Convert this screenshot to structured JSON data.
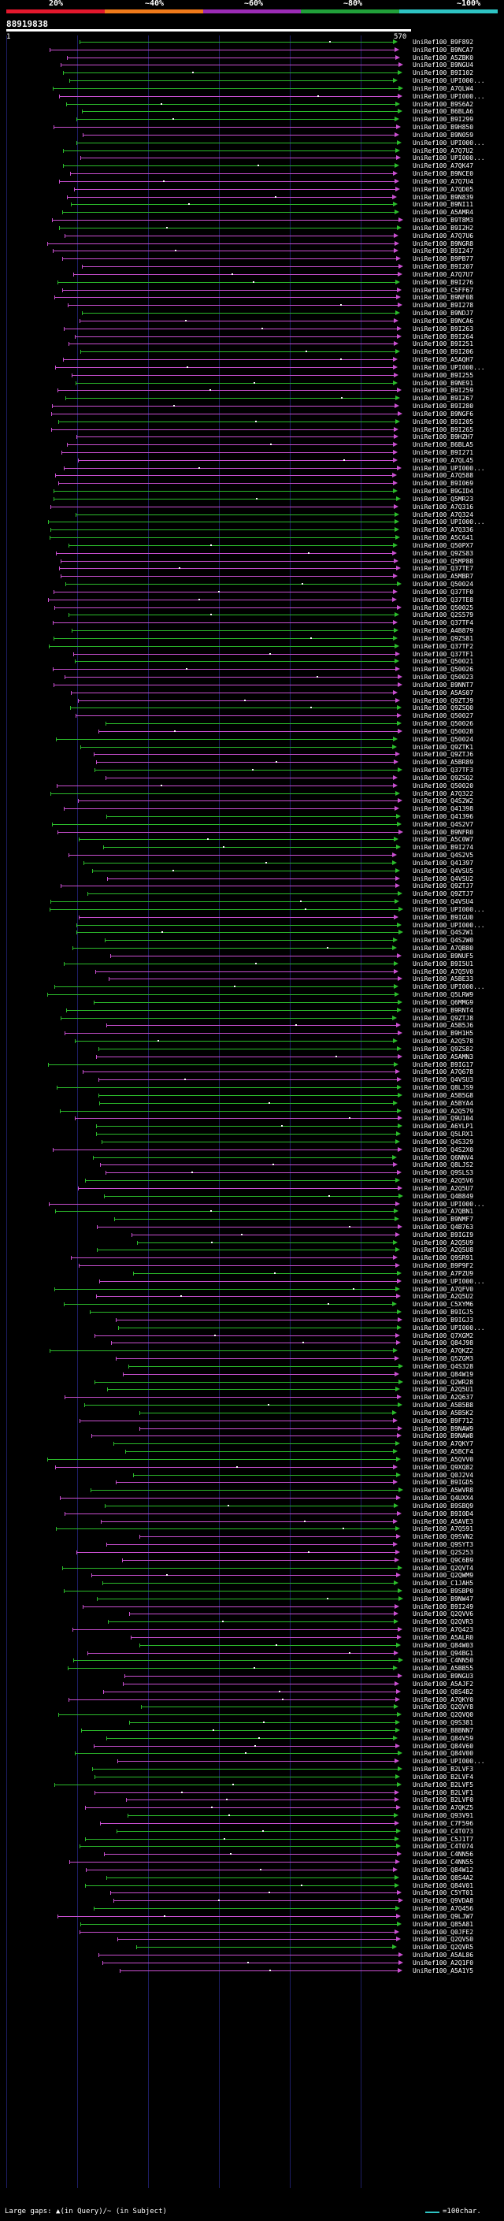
{
  "legend": {
    "labels": [
      "20%",
      "~40%",
      "~60%",
      "~80%",
      "~100%"
    ],
    "colors": [
      "#e3182d",
      "#f07a1a",
      "#9b2bb5",
      "#21a03a",
      "#2ec4c4"
    ]
  },
  "title": "88919838",
  "ruler": {
    "start": "1",
    "end": "570"
  },
  "footer": {
    "left": "Large gaps: ▲(in Query)/~ (in Subject)",
    "right": "=100char."
  },
  "colors": {
    "green": "#2bbb2b",
    "magenta": "#c94fd0",
    "background": "#000000",
    "gridline": "#1e1e66"
  },
  "hits": [
    "UniRef100_B9F892",
    "UniRef100_B9NCA7",
    "UniRef100_A5ZBK0",
    "UniRef100_B9NGU4",
    "UniRef100_B9I102",
    "UniRef100_UPI000...",
    "UniRef100_A7QLW4",
    "UniRef100_UPI000...",
    "UniRef100_B9S6A2",
    "UniRef100_B6BLA6",
    "UniRef100_B9I299",
    "UniRef100_B9H850",
    "UniRef100_B9N059",
    "UniRef100_UPI000...",
    "UniRef100_A7Q7U2",
    "UniRef100_UPI000...",
    "UniRef100_A7QK47",
    "UniRef100_B9NCE0",
    "UniRef100_A7Q7U4",
    "UniRef100_A7QD05",
    "UniRef100_B9N839",
    "UniRef100_B9NI11",
    "UniRef100_A5AMR4",
    "UniRef100_B9T8M3",
    "UniRef100_B9I2H2",
    "UniRef100_A7Q7U6",
    "UniRef100_B9NGR8",
    "UniRef100_B9I247",
    "UniRef100_B9PB77",
    "UniRef100_B9I207",
    "UniRef100_A7Q7U7",
    "UniRef100_B9I276",
    "UniRef100_C5FF67",
    "UniRef100_B9NF08",
    "UniRef100_B9I278",
    "UniRef100_B9NDJ7",
    "UniRef100_B9NCA6",
    "UniRef100_B9I263",
    "UniRef100_B9I264",
    "UniRef100_B9I251",
    "UniRef100_B9I206",
    "UniRef100_A5AQH7",
    "UniRef100_UPI000...",
    "UniRef100_B9I255",
    "UniRef100_B9NE91",
    "UniRef100_B9I259",
    "UniRef100_B9I267",
    "UniRef100_B9I280",
    "UniRef100_B9NGF6",
    "UniRef100_B9I205",
    "UniRef100_B9I265",
    "UniRef100_B9HZH7",
    "UniRef100_B6BLA5",
    "UniRef100_B9I271",
    "UniRef100_A7QL45",
    "UniRef100_UPI000...",
    "UniRef100_A7Q588",
    "UniRef100_B9I069",
    "UniRef100_B9GID4",
    "UniRef100_Q5MR23",
    "UniRef100_A7Q316",
    "UniRef100_A7Q324",
    "UniRef100_UPI000...",
    "UniRef100_A7Q336",
    "UniRef100_A5C641",
    "UniRef100_Q50PX7",
    "UniRef100_Q9ZS83",
    "UniRef100_Q5MP88",
    "UniRef100_Q37TE7",
    "UniRef100_A5MBR7",
    "UniRef100_Q50024",
    "UniRef100_Q37TF0",
    "UniRef100_Q37TE8",
    "UniRef100_Q50025",
    "UniRef100_Q2S579",
    "UniRef100_Q37TF4",
    "UniRef100_A4B879",
    "UniRef100_Q9ZS81",
    "UniRef100_Q37TF2",
    "UniRef100_Q37TF1",
    "UniRef100_Q50021",
    "UniRef100_Q50026",
    "UniRef100_Q50023",
    "UniRef100_B9NNT7",
    "UniRef100_A5AS07",
    "UniRef100_Q9ZTJ9",
    "UniRef100_Q9ZSQ0",
    "UniRef100_Q50027",
    "UniRef100_Q50026",
    "UniRef100_Q50028",
    "UniRef100_Q50024",
    "UniRef100_Q9ZTK1",
    "UniRef100_Q9ZTJ6",
    "UniRef100_A5BR89",
    "UniRef100_Q37TF3",
    "UniRef100_Q9ZSQ2",
    "UniRef100_Q50020",
    "UniRef100_A7Q322",
    "UniRef100_Q4S2W2",
    "UniRef100_Q41398",
    "UniRef100_Q41396",
    "UniRef100_Q4S2V7",
    "UniRef100_B9NFR0",
    "UniRef100_A5C0W7",
    "UniRef100_B9I274",
    "UniRef100_Q4S2V5",
    "UniRef100_Q41397",
    "UniRef100_Q4VSU5",
    "UniRef100_Q4VSU2",
    "UniRef100_Q9ZTJ7",
    "UniRef100_Q9ZTJ7",
    "UniRef100_Q4VSU4",
    "UniRef100_UPI000...",
    "UniRef100_B9IGU0",
    "UniRef100_UPI000...",
    "UniRef100_Q4S2W1",
    "UniRef100_Q4S2W0",
    "UniRef100_A7QB80",
    "UniRef100_B9NUF5",
    "UniRef100_B9I5U1",
    "UniRef100_A7Q5V0",
    "UniRef100_A5BE33",
    "UniRef100_UPI000...",
    "UniRef100_Q5LRW9",
    "UniRef100_Q6MMG9",
    "UniRef100_B9RNT4",
    "UniRef100_Q9ZTJ8",
    "UniRef100_A5B5J6",
    "UniRef100_B9H1H5",
    "UniRef100_A2Q578",
    "UniRef100_Q9ZS82",
    "UniRef100_A5AMN3",
    "UniRef100_B9IG17",
    "UniRef100_A7Q678",
    "UniRef100_Q4VSU3",
    "UniRef100_Q8LJS9",
    "UniRef100_A5B5G8",
    "UniRef100_A5BYA4",
    "UniRef100_A2Q579",
    "UniRef100_Q9U104",
    "UniRef100_A6YLP1",
    "UniRef100_Q5LRX1",
    "UniRef100_Q4S329",
    "UniRef100_Q4S2X0",
    "UniRef100_Q6NNV4",
    "UniRef100_Q8LJS2",
    "UniRef100_Q9SLS3",
    "UniRef100_A2Q5V6",
    "UniRef100_A2Q5U7",
    "UniRef100_Q4B849",
    "UniRef100_UPI000...",
    "UniRef100_A7QBN1",
    "UniRef100_B9NMF7",
    "UniRef100_Q4B763",
    "UniRef100_B9IGI9",
    "UniRef100_A2Q5U9",
    "UniRef100_A2Q5U8",
    "UniRef100_Q9SR91",
    "UniRef100_B9P9F2",
    "UniRef100_A7PZU9",
    "UniRef100_UPI000...",
    "UniRef100_A7QFV0",
    "UniRef100_A2Q5U2",
    "UniRef100_C5XYM6",
    "UniRef100_B9IGJ5",
    "UniRef100_B9IGJ3",
    "UniRef100_UPI000...",
    "UniRef100_Q7XGM2",
    "UniRef100_Q84J98",
    "UniRef100_A7QKZ2",
    "UniRef100_Q5ZGM3",
    "UniRef100_Q4S328",
    "UniRef100_Q84W19",
    "UniRef100_Q2WR28",
    "UniRef100_A2Q5U1",
    "UniRef100_A2Q637",
    "UniRef100_A5B5B8",
    "UniRef100_A5B5K2",
    "UniRef100_B9F712",
    "UniRef100_B9NAW9",
    "UniRef100_B9NAW8",
    "UniRef100_A7QKY7",
    "UniRef100_A5BCF4",
    "UniRef100_A5QVV0",
    "UniRef100_Q9XQ82",
    "UniRef100_Q0J2V4",
    "UniRef100_B9IGD5",
    "UniRef100_A5WVR8",
    "UniRef100_Q4UXX4",
    "UniRef100_B9SBQ9",
    "UniRef100_B9I0D4",
    "UniRef100_A5AVE3",
    "UniRef100_A7Q591",
    "UniRef100_Q9SVN2",
    "UniRef100_Q9SYT3",
    "UniRef100_Q2S253",
    "UniRef100_Q9C6B9",
    "UniRef100_Q2QVT4",
    "UniRef100_Q2QWM9",
    "UniRef100_C1JAH5",
    "UniRef100_B9SBP0",
    "UniRef100_B9NW47",
    "UniRef100_B9I249",
    "UniRef100_Q2QVV6",
    "UniRef100_Q2QVR3",
    "UniRef100_A7Q423",
    "UniRef100_A5ALR0",
    "UniRef100_Q84W03",
    "UniRef100_Q94BG1",
    "UniRef100_C4NN50",
    "UniRef100_A5BB55",
    "UniRef100_B9NGU3",
    "UniRef100_A5AJF2",
    "UniRef100_Q8S4B2",
    "UniRef100_A7QKY0",
    "UniRef100_Q2QVY8",
    "UniRef100_Q2QVQ0",
    "UniRef100_Q9S381",
    "UniRef100_B8BNN7",
    "UniRef100_Q84V59",
    "UniRef100_Q84V60",
    "UniRef100_Q84V00",
    "UniRef100_UPI000...",
    "UniRef100_B2LVF3",
    "UniRef100_B2LVF4",
    "UniRef100_B2LVF5",
    "UniRef100_B2LVF1",
    "UniRef100_B2LVF0",
    "UniRef100_A7QKZ5",
    "UniRef100_Q93V91",
    "UniRef100_C7F596",
    "UniRef100_C4T073",
    "UniRef100_C5J1T7",
    "UniRef100_C4T074",
    "UniRef100_C4NN56",
    "UniRef100_C4NN55",
    "UniRef100_Q84W12",
    "UniRef100_Q8S4A2",
    "UniRef100_Q84V01",
    "UniRef100_C5YT01",
    "UniRef100_Q9VDA8",
    "UniRef100_A7Q456",
    "UniRef100_Q9LJW7",
    "UniRef100_Q85A81",
    "UniRef100_Q0JFE2",
    "UniRef100_Q2QVS0",
    "UniRef100_Q2QVR5",
    "UniRef100_A5AL86",
    "UniRef100_A2Q1F0",
    "UniRef100_A5A1Y5"
  ]
}
